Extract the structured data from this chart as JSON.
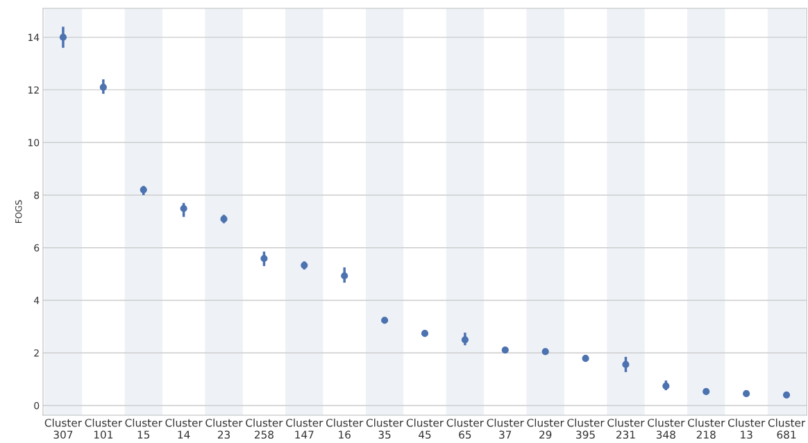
{
  "chart_data": {
    "type": "scatter",
    "ylabel": "FOGS",
    "categories": [
      "Cluster\n307",
      "Cluster\n101",
      "Cluster\n15",
      "Cluster\n14",
      "Cluster\n23",
      "Cluster\n258",
      "Cluster\n147",
      "Cluster\n16",
      "Cluster\n35",
      "Cluster\n45",
      "Cluster\n65",
      "Cluster\n37",
      "Cluster\n29",
      "Cluster\n395",
      "Cluster\n231",
      "Cluster\n348",
      "Cluster\n218",
      "Cluster\n13",
      "Cluster\n681"
    ],
    "series": [
      {
        "color": "#4c72b0",
        "values": [
          14.0,
          12.1,
          8.2,
          7.49,
          7.09,
          5.59,
          5.33,
          4.93,
          3.24,
          2.74,
          2.5,
          2.11,
          2.05,
          1.79,
          1.56,
          0.74,
          0.53,
          0.45,
          0.4
        ],
        "errors": [
          [
            13.6,
            14.4
          ],
          [
            11.85,
            12.4
          ],
          [
            8.0,
            8.35
          ],
          [
            7.17,
            7.7
          ],
          [
            6.93,
            7.25
          ],
          [
            5.3,
            5.85
          ],
          [
            5.17,
            5.48
          ],
          [
            4.67,
            5.25
          ],
          [
            3.11,
            3.35
          ],
          [
            2.61,
            2.85
          ],
          [
            2.29,
            2.77
          ],
          [
            2.0,
            2.2
          ],
          [
            1.95,
            2.15
          ],
          [
            1.66,
            1.92
          ],
          [
            1.27,
            1.85
          ],
          [
            0.58,
            0.95
          ],
          null,
          null,
          null
        ]
      }
    ],
    "ylim": [
      -0.37,
      15.1
    ],
    "yticks": [
      0,
      2,
      4,
      6,
      8,
      10,
      12,
      14
    ],
    "grid": "y",
    "marker": "circle",
    "legend": false
  }
}
